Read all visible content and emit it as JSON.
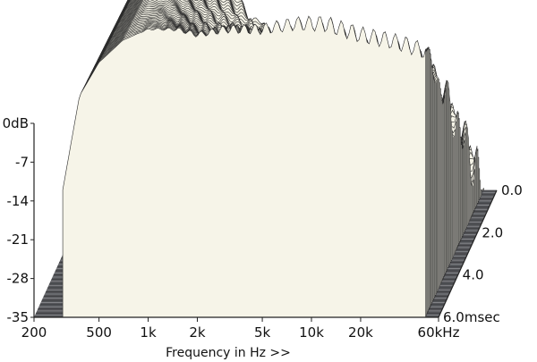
{
  "chart_data": {
    "type": "waterfall",
    "title": "",
    "xlabel": "Frequency in Hz >>",
    "x_scale": "log",
    "xlim": [
      200,
      60000
    ],
    "x_ticks": [
      {
        "value": 200,
        "label": "200"
      },
      {
        "value": 500,
        "label": "500"
      },
      {
        "value": 1000,
        "label": "1k"
      },
      {
        "value": 2000,
        "label": "2k"
      },
      {
        "value": 5000,
        "label": "5k"
      },
      {
        "value": 10000,
        "label": "10k"
      },
      {
        "value": 20000,
        "label": "20k"
      },
      {
        "value": 60000,
        "label": "60kHz"
      }
    ],
    "ylabel": "",
    "ylim": [
      -35,
      0
    ],
    "y_unit": "dB",
    "y_ticks": [
      {
        "value": 0,
        "label": "0dB"
      },
      {
        "value": -7,
        "label": "-7"
      },
      {
        "value": -14,
        "label": "-14"
      },
      {
        "value": -21,
        "label": "-21"
      },
      {
        "value": -28,
        "label": "-28"
      },
      {
        "value": -35,
        "label": "-35"
      }
    ],
    "z_label": "",
    "z_unit": "msec",
    "zlim": [
      0,
      6.0
    ],
    "z_ticks": [
      {
        "value": 0.0,
        "label": "0.0"
      },
      {
        "value": 2.0,
        "label": "2.0"
      },
      {
        "value": 4.0,
        "label": "4.0"
      },
      {
        "value": 6.0,
        "label": "6.0msec"
      }
    ],
    "slice_count": 70,
    "first_slice_response_db": [
      {
        "hz": 300,
        "db": -12
      },
      {
        "hz": 380,
        "db": 5
      },
      {
        "hz": 500,
        "db": 11
      },
      {
        "hz": 700,
        "db": 15
      },
      {
        "hz": 1000,
        "db": 17
      },
      {
        "hz": 1500,
        "db": 17
      },
      {
        "hz": 2000,
        "db": 16
      },
      {
        "hz": 3000,
        "db": 17
      },
      {
        "hz": 5000,
        "db": 17
      },
      {
        "hz": 8000,
        "db": 18
      },
      {
        "hz": 12000,
        "db": 18
      },
      {
        "hz": 20000,
        "db": 16
      },
      {
        "hz": 30000,
        "db": 15
      },
      {
        "hz": 40000,
        "db": 14
      },
      {
        "hz": 50000,
        "db": 13
      }
    ],
    "floor_color": "#55565a",
    "surface_color": "#f6f4e8",
    "line_color": "#2a2a2a"
  }
}
